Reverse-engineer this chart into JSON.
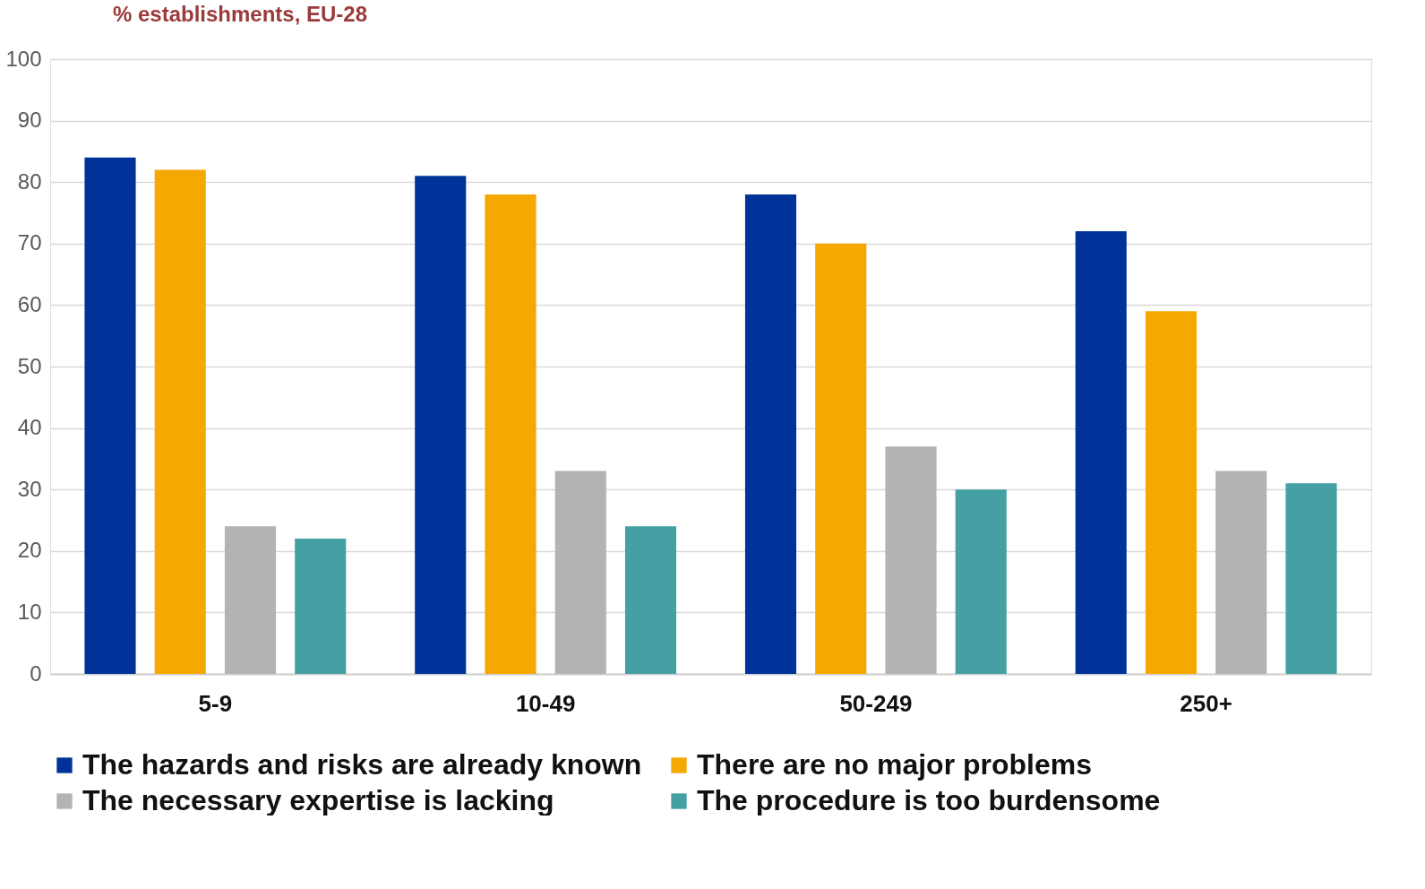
{
  "chart_data": {
    "type": "bar",
    "title": "% establishments, EU-28",
    "categories": [
      "5-9",
      "10-49",
      "50-249",
      "250+"
    ],
    "series": [
      {
        "name": "The hazards and risks are already known",
        "color": "#003399",
        "values": [
          84,
          81,
          78,
          72
        ]
      },
      {
        "name": "There are no major problems",
        "color": "#f5a800",
        "values": [
          82,
          78,
          70,
          59
        ]
      },
      {
        "name": "The necessary expertise is lacking",
        "color": "#b3b3b4",
        "values": [
          24,
          33,
          37,
          33
        ]
      },
      {
        "name": "The procedure is too burdensome",
        "color": "#45a0a3",
        "values": [
          22,
          24,
          30,
          31
        ]
      }
    ],
    "ylim": [
      0,
      100
    ],
    "yticks": [
      0,
      10,
      20,
      30,
      40,
      50,
      60,
      70,
      80,
      90,
      100
    ],
    "grid": "y",
    "legend": "bottom"
  }
}
